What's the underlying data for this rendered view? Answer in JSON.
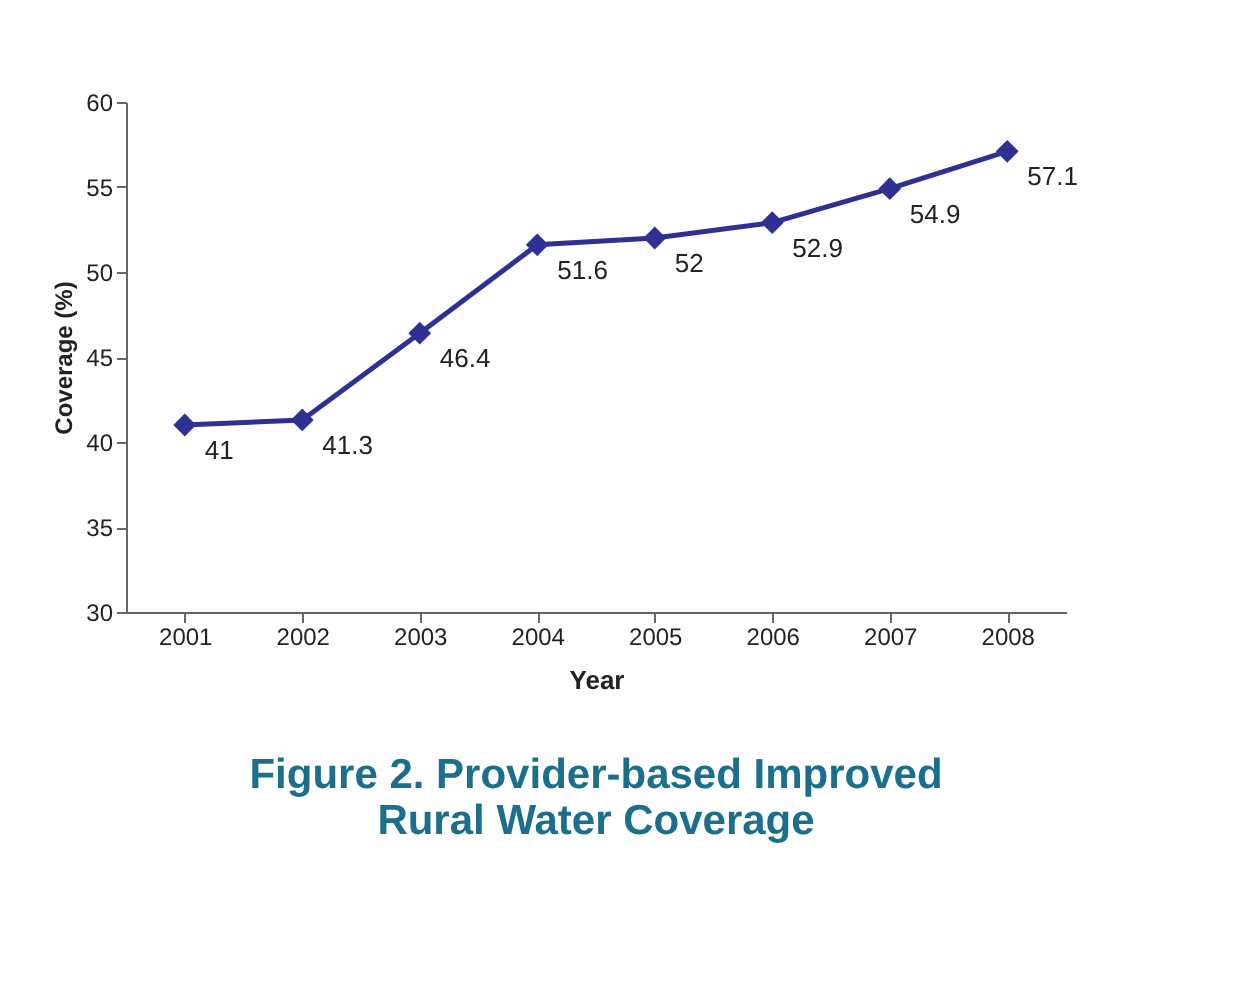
{
  "chart_data": {
    "type": "line",
    "title": "Figure 2. Provider-based Improved Rural Water Coverage",
    "xlabel": "Year",
    "ylabel": "Coverage (%)",
    "categories": [
      "2001",
      "2002",
      "2003",
      "2004",
      "2005",
      "2006",
      "2007",
      "2008"
    ],
    "series": [
      {
        "color": "#2e3192",
        "values": [
          41,
          41.3,
          46.4,
          51.6,
          52,
          52.9,
          54.9,
          57.1
        ]
      }
    ],
    "ylim": [
      30,
      60
    ],
    "yticks": [
      30,
      35,
      40,
      45,
      50,
      55,
      60
    ],
    "marker": "diamond",
    "line_style": "solid",
    "data_labels": true,
    "grid": false,
    "legend": false
  }
}
